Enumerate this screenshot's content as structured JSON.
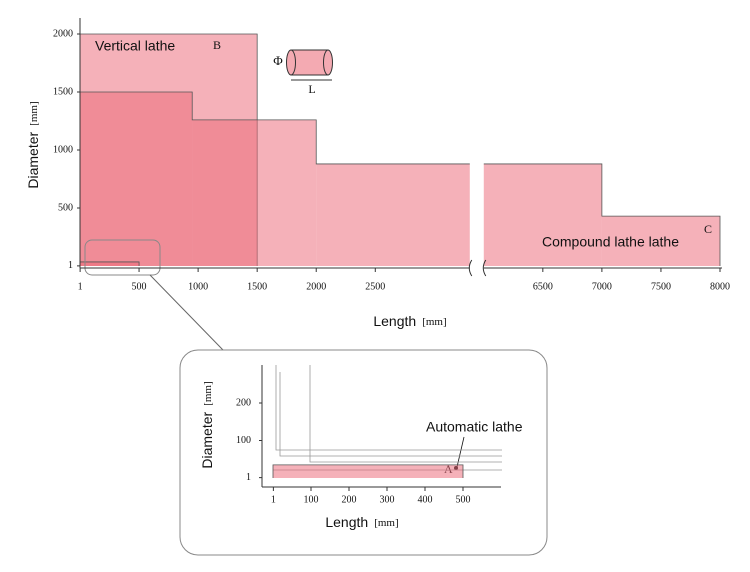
{
  "chart_data": [
    {
      "type": "region",
      "x_label": "Length",
      "x_unit": "[mm]",
      "y_label": "Diameter",
      "y_unit": "[mm]",
      "xlim": [
        0,
        8000
      ],
      "x_break": [
        3300,
        6000
      ],
      "ylim": [
        0,
        2000
      ],
      "xticks": [
        1,
        500,
        1000,
        1500,
        2000,
        2500,
        6500,
        7000,
        7500,
        8000
      ],
      "yticks": [
        1,
        500,
        1000,
        1500,
        2000
      ],
      "regions": [
        {
          "name": "Vertical lathe",
          "label": "B",
          "color": "#ec6a78",
          "lengths": [
            1500
          ],
          "diameters": [
            2000
          ]
        },
        {
          "name": "Compound lathe lathe",
          "label": "C",
          "color": "#ec6a78",
          "lengths": [
            950,
            2000,
            7000,
            8000
          ],
          "diameters": [
            1500,
            1260,
            880,
            430
          ]
        }
      ],
      "symbols": {
        "diameter": "Φ",
        "length": "L"
      }
    },
    {
      "type": "region",
      "x_label": "Length",
      "x_unit": "[mm]",
      "y_label": "Diameter",
      "y_unit": "[mm]",
      "xlim": [
        0,
        600
      ],
      "ylim": [
        0,
        300
      ],
      "xticks": [
        1,
        100,
        200,
        300,
        400,
        500
      ],
      "yticks": [
        1,
        100,
        200
      ],
      "regions": [
        {
          "name": "Automatic lathe",
          "label": "A",
          "color": "#ec6a78",
          "lengths": [
            500
          ],
          "diameters": [
            35
          ]
        }
      ]
    }
  ]
}
